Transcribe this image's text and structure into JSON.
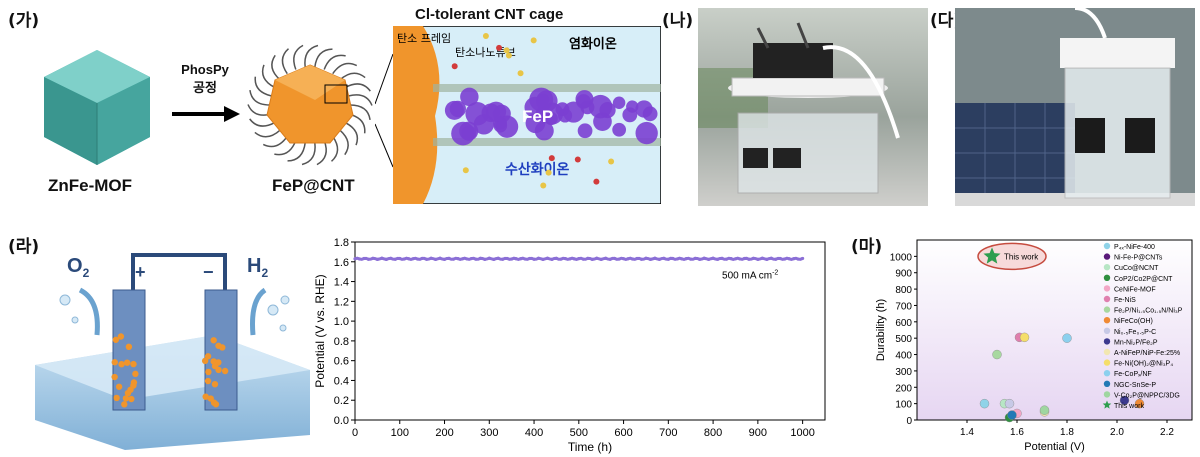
{
  "panels": {
    "a": {
      "label": "(가)",
      "precursor": "ZnFe-MOF",
      "process_line1": "PhosPy",
      "process_line2": "공정",
      "product": "FeP@CNT",
      "cage_title": "Cl-tolerant CNT cage",
      "carbon_frame": "탄소 프레임",
      "nanotube": "탄소나노튜브",
      "chloride": "염화이온",
      "fep": "FeP",
      "hydroxide": "수산화이온"
    },
    "b": {
      "label": "(나)"
    },
    "c": {
      "label": "(다)"
    },
    "d": {
      "label": "(라)",
      "o2": "O",
      "o2_sub": "2",
      "h2": "H",
      "h2_sub": "2",
      "plus": "+",
      "minus": "−"
    },
    "e": {
      "label": "(마)"
    }
  },
  "colors": {
    "mof": "#4fb3ad",
    "fep": "#f0952c",
    "fep_particle": "#7b3fd1",
    "stability_line": "#8b6fd6",
    "this_work_star": "#2e9e4f",
    "highlight": "#c0392b"
  },
  "chart_data": [
    {
      "type": "line",
      "xlabel": "Time (h)",
      "ylabel": "Potential (V vs. RHE)",
      "xlim": [
        0,
        1050
      ],
      "ylim": [
        0.0,
        1.8
      ],
      "xticks": [
        "0",
        "100",
        "200",
        "300",
        "400",
        "500",
        "600",
        "700",
        "800",
        "900",
        "1000"
      ],
      "yticks": [
        "0.0",
        "0.2",
        "0.4",
        "0.6",
        "0.8",
        "1.0",
        "1.2",
        "1.4",
        "1.6",
        "1.8"
      ],
      "annotation": "500 mA cm",
      "annotation_sup": "-2",
      "series": [
        {
          "x": [
            0,
            1000
          ],
          "values": [
            1.63,
            1.63
          ]
        }
      ]
    },
    {
      "type": "scatter",
      "xlabel": "Potential (V)",
      "ylabel": "Durability (h)",
      "xlim": [
        1.2,
        2.3
      ],
      "ylim": [
        0,
        1100
      ],
      "xticks": [
        "1.4",
        "1.6",
        "1.8",
        "2.0",
        "2.2"
      ],
      "yticks": [
        "0",
        "100",
        "200",
        "300",
        "400",
        "500",
        "600",
        "700",
        "800",
        "900",
        "1000"
      ],
      "highlight_label": "This work",
      "points": [
        {
          "name": "P₄ₓ-NiFe-400",
          "x": 1.47,
          "y": 100,
          "color": "#8fd3e8"
        },
        {
          "name": "Ni-Fe-P@CNTs",
          "x": 1.58,
          "y": 30,
          "color": "#5a1a7a"
        },
        {
          "name": "CuCo@NCNT",
          "x": 1.55,
          "y": 100,
          "color": "#b7e6c5"
        },
        {
          "name": "CoP2/Co2P@CNT",
          "x": 1.57,
          "y": 15,
          "color": "#2f8f3f"
        },
        {
          "name": "CeNiFe-MOF",
          "x": 1.6,
          "y": 40,
          "color": "#f3a6c6"
        },
        {
          "name": "Fe-NiS",
          "x": 1.61,
          "y": 505,
          "color": "#e07fae"
        },
        {
          "name": "Fe₂P/Ni₁.₅Co₁.₅N/Ni₃P",
          "x": 1.52,
          "y": 400,
          "color": "#a8d8a0"
        },
        {
          "name": "NiFeCo(OH)",
          "x": 2.09,
          "y": 100,
          "color": "#f08a35"
        },
        {
          "name": "Ni₀.₅Fe₀.₅P-C",
          "x": 1.57,
          "y": 100,
          "color": "#c7c9e6"
        },
        {
          "name": "Mn-Ni₂P/Fe₂P",
          "x": 2.03,
          "y": 120,
          "color": "#3d3a8f"
        },
        {
          "name": "A-NiFeP/NiP-Fe:25%",
          "x": 1.71,
          "y": 50,
          "color": "#f2e7b0"
        },
        {
          "name": "Fe-Ni(OH)₂@Ni₃P₄",
          "x": 1.63,
          "y": 505,
          "color": "#f5de6a"
        },
        {
          "name": "Fe-CoPₓ/NF",
          "x": 1.8,
          "y": 500,
          "color": "#8cd0ee"
        },
        {
          "name": "NGC-SnSe-P",
          "x": 1.58,
          "y": 30,
          "color": "#2379b5"
        },
        {
          "name": "V-Co₂P@NPPC/3DG",
          "x": 1.71,
          "y": 60,
          "color": "#9fd6a0"
        },
        {
          "name": "This work",
          "x": 1.5,
          "y": 1000,
          "color": "#2e9e4f",
          "marker": "star"
        }
      ]
    }
  ]
}
